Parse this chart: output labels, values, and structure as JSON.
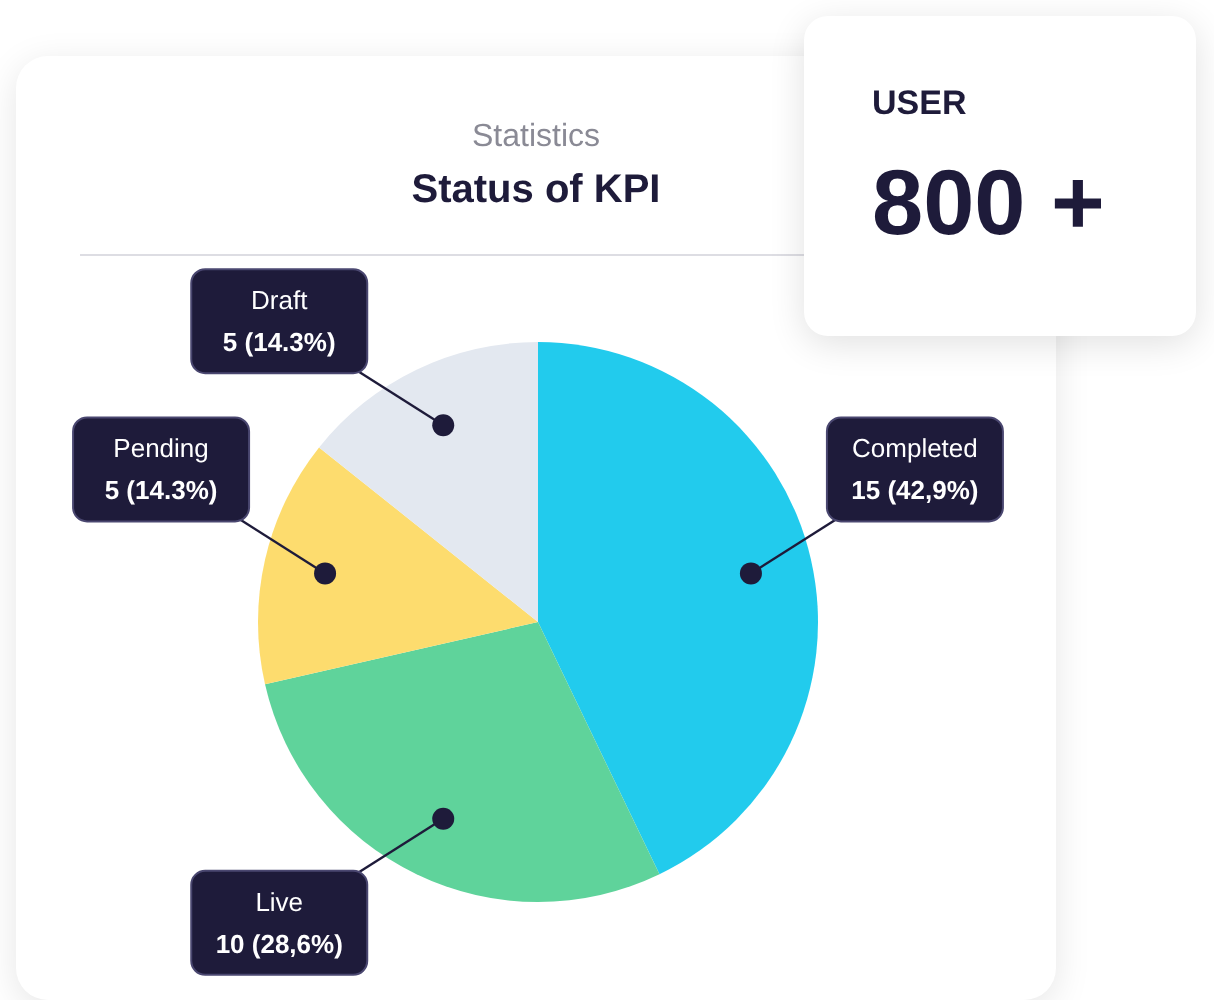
{
  "chart_data": [
    {
      "type": "pie",
      "subtitle": "Statistics",
      "title": "Status of KPI",
      "categories": [
        "Completed",
        "Live",
        "Pending",
        "Draft"
      ],
      "values": [
        15,
        10,
        5,
        5
      ],
      "colors": [
        "#22cbed",
        "#5fd39b",
        "#fddc6e",
        "#e3e8f0"
      ],
      "value_labels": [
        "15 (42,9%)",
        "10 (28,6%)",
        "5 (14.3%)",
        "5 (14.3%)"
      ]
    },
    {
      "type": "other",
      "title": "USER",
      "annotations": [
        "800 +"
      ]
    }
  ]
}
